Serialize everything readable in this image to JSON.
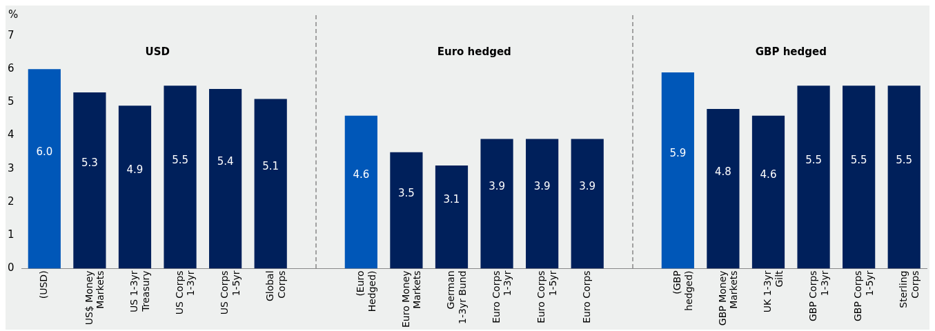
{
  "chart_data": {
    "type": "bar",
    "ylabel": "%",
    "categories": [
      "(USD)",
      "US$ Money\nMarkets",
      "US 1-3yr\nTreasury",
      "US Corps\n1-3yr",
      "US Corps\n1-5yr",
      "Global\nCorps",
      null,
      "(Euro\nHedged)",
      "Euro Money\nMarkets",
      "German\n1-3yr Bund",
      "Euro Corps\n1-3yr",
      "Euro Corps\n1-5yr",
      "Euro Corps",
      null,
      "(GBP\nhedged)",
      "GBP Money\nMarkets",
      "UK 1-3yr\nGilt",
      "GBP Corps\n1-3yr",
      "GBP Corps\n1-5yr",
      "Sterling\nCorps"
    ],
    "values": [
      6.0,
      5.3,
      4.9,
      5.5,
      5.4,
      5.1,
      null,
      4.6,
      3.5,
      3.1,
      3.9,
      3.9,
      3.9,
      null,
      5.9,
      4.8,
      4.6,
      5.5,
      5.5,
      5.5
    ],
    "value_labels": [
      "6.0",
      "5.3",
      "4.9",
      "5.5",
      "5.4",
      "5.1",
      null,
      "4.6",
      "3.5",
      "3.1",
      "3.9",
      "3.9",
      "3.9",
      null,
      "5.9",
      "4.8",
      "4.6",
      "5.5",
      "5.5",
      "5.5"
    ],
    "colors": [
      "#0057b8",
      "#00205b",
      "#00205b",
      "#00205b",
      "#00205b",
      "#00205b",
      "#00205b",
      "#0057b8",
      "#00205b",
      "#00205b",
      "#00205b",
      "#00205b",
      "#00205b",
      "#00205b",
      "#0057b8",
      "#00205b",
      "#00205b",
      "#00205b",
      "#00205b",
      "#00205b"
    ],
    "annotations": [
      "USD",
      "Euro hedged",
      "GBP hedged"
    ],
    "ylim": [
      0,
      7
    ],
    "yticks": [
      0,
      1,
      2,
      3,
      4,
      5,
      6,
      7
    ],
    "legend": false
  }
}
